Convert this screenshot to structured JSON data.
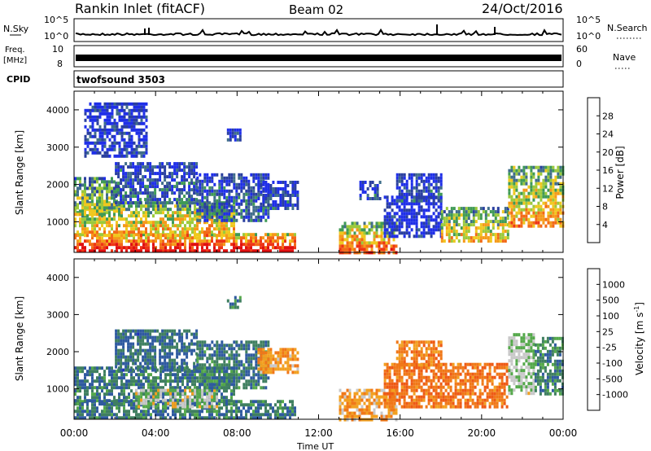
{
  "header": {
    "station": "Rankin Inlet (fitACF)",
    "beam": "Beam 02",
    "date": "24/Oct/2016"
  },
  "noise_panel": {
    "left_label": "N.Sky",
    "right_label": "N.Search",
    "left_ticks": [
      "10^5",
      "10^0"
    ],
    "right_ticks": [
      "10^5",
      "10^0"
    ]
  },
  "freq_panel": {
    "left_label_line1": "Freq.",
    "left_label_line2": "[MHz]",
    "left_ticks": [
      "10",
      "8"
    ],
    "right_ticks": [
      "60",
      "0"
    ],
    "right_label": "Nave"
  },
  "cpid_panel": {
    "label": "CPID",
    "value": "twofsound 3503"
  },
  "x_axis": {
    "label": "Time UT",
    "ticks": [
      "00:00",
      "04:00",
      "08:00",
      "12:00",
      "16:00",
      "20:00",
      "00:00"
    ]
  },
  "chart_data": [
    {
      "type": "heatmap",
      "panel": "power",
      "ylabel": "Slant Range [km]",
      "xlabel": "Time UT",
      "x_range_hours": [
        0,
        24
      ],
      "ylim": [
        180,
        4500
      ],
      "y_ticks": [
        1000,
        2000,
        3000,
        4000
      ],
      "colorbar": {
        "label": "Power [dB]",
        "ticks": [
          "4",
          "8",
          "12",
          "16",
          "20",
          "24",
          "28"
        ],
        "colors": [
          "#1f2fe8",
          "#2a3f9f",
          "#3f6d8a",
          "#3f9a55",
          "#9cc93c",
          "#f0c81e",
          "#f59a1a",
          "#f26a17",
          "#ee3515",
          "#e01010"
        ]
      },
      "echo_regions": [
        {
          "t0": 0.0,
          "t1": 10.8,
          "r0": 200,
          "r1": 700,
          "level": 0.95
        },
        {
          "t0": 0.0,
          "t1": 7.8,
          "r0": 600,
          "r1": 1550,
          "level": 0.6
        },
        {
          "t0": 0.0,
          "t1": 2.2,
          "r0": 1200,
          "r1": 2200,
          "level": 0.45
        },
        {
          "t0": 2.0,
          "t1": 6.0,
          "r0": 1500,
          "r1": 2600,
          "level": 0.2
        },
        {
          "t0": 6.0,
          "t1": 9.5,
          "r0": 1000,
          "r1": 2300,
          "level": 0.2
        },
        {
          "t0": 9.0,
          "t1": 11.0,
          "r0": 1400,
          "r1": 2100,
          "level": 0.15
        },
        {
          "t0": 13.0,
          "t1": 15.8,
          "r0": 200,
          "r1": 1000,
          "level": 0.7
        },
        {
          "t0": 14.0,
          "t1": 15.0,
          "r0": 1600,
          "r1": 2100,
          "level": 0.15
        },
        {
          "t0": 15.2,
          "t1": 18.0,
          "r0": 600,
          "r1": 1700,
          "level": 0.05
        },
        {
          "t0": 15.8,
          "t1": 18.0,
          "r0": 1600,
          "r1": 2300,
          "level": 0.15
        },
        {
          "t0": 18.0,
          "t1": 21.3,
          "r0": 500,
          "r1": 1400,
          "level": 0.55
        },
        {
          "t0": 21.3,
          "t1": 24.0,
          "r0": 900,
          "r1": 2500,
          "level": 0.6
        },
        {
          "t0": 7.5,
          "t1": 8.2,
          "r0": 3200,
          "r1": 3500,
          "level": 0.1
        },
        {
          "t0": 0.5,
          "t1": 3.5,
          "r0": 2800,
          "r1": 4200,
          "level": 0.1
        }
      ]
    },
    {
      "type": "heatmap",
      "panel": "velocity",
      "ylabel": "Slant Range [km]",
      "xlabel": "Time UT",
      "x_range_hours": [
        0,
        24
      ],
      "ylim": [
        180,
        4500
      ],
      "y_ticks": [
        1000,
        2000,
        3000,
        4000
      ],
      "colorbar": {
        "label": "Velocity [m s^-1]",
        "ticks": [
          "1000",
          "500",
          "100",
          "25",
          "-25",
          "-100",
          "-500",
          "-1000"
        ],
        "colors": [
          "#2030c0",
          "#2f5aa0",
          "#3f7f60",
          "#54a84a",
          "#c8c8c8",
          "#f2a020",
          "#f07818",
          "#ee5a15",
          "#e01010"
        ]
      },
      "echo_regions": [
        {
          "t0": 0.0,
          "t1": 10.8,
          "r0": 200,
          "r1": 700,
          "v": 0.25
        },
        {
          "t0": 0.0,
          "t1": 7.8,
          "r0": 600,
          "r1": 1600,
          "v": 0.25
        },
        {
          "t0": 3.0,
          "t1": 7.0,
          "r0": 500,
          "r1": 1000,
          "v": 0.48
        },
        {
          "t0": 2.0,
          "t1": 6.0,
          "r0": 1500,
          "r1": 2600,
          "v": 0.22
        },
        {
          "t0": 6.0,
          "t1": 9.5,
          "r0": 1000,
          "r1": 2300,
          "v": 0.25
        },
        {
          "t0": 9.0,
          "t1": 11.0,
          "r0": 1400,
          "r1": 2100,
          "v": 0.65
        },
        {
          "t0": 13.0,
          "t1": 15.8,
          "r0": 200,
          "r1": 1000,
          "v": 0.62
        },
        {
          "t0": 15.2,
          "t1": 21.3,
          "r0": 500,
          "r1": 1700,
          "v": 0.75
        },
        {
          "t0": 15.8,
          "t1": 18.0,
          "r0": 1600,
          "r1": 2300,
          "v": 0.72
        },
        {
          "t0": 21.3,
          "t1": 22.6,
          "r0": 900,
          "r1": 2500,
          "v": 0.45
        },
        {
          "t0": 22.6,
          "t1": 24.0,
          "r0": 900,
          "r1": 2400,
          "v": 0.28
        },
        {
          "t0": 7.5,
          "t1": 8.2,
          "r0": 3200,
          "r1": 3500,
          "v": 0.3
        }
      ]
    }
  ]
}
